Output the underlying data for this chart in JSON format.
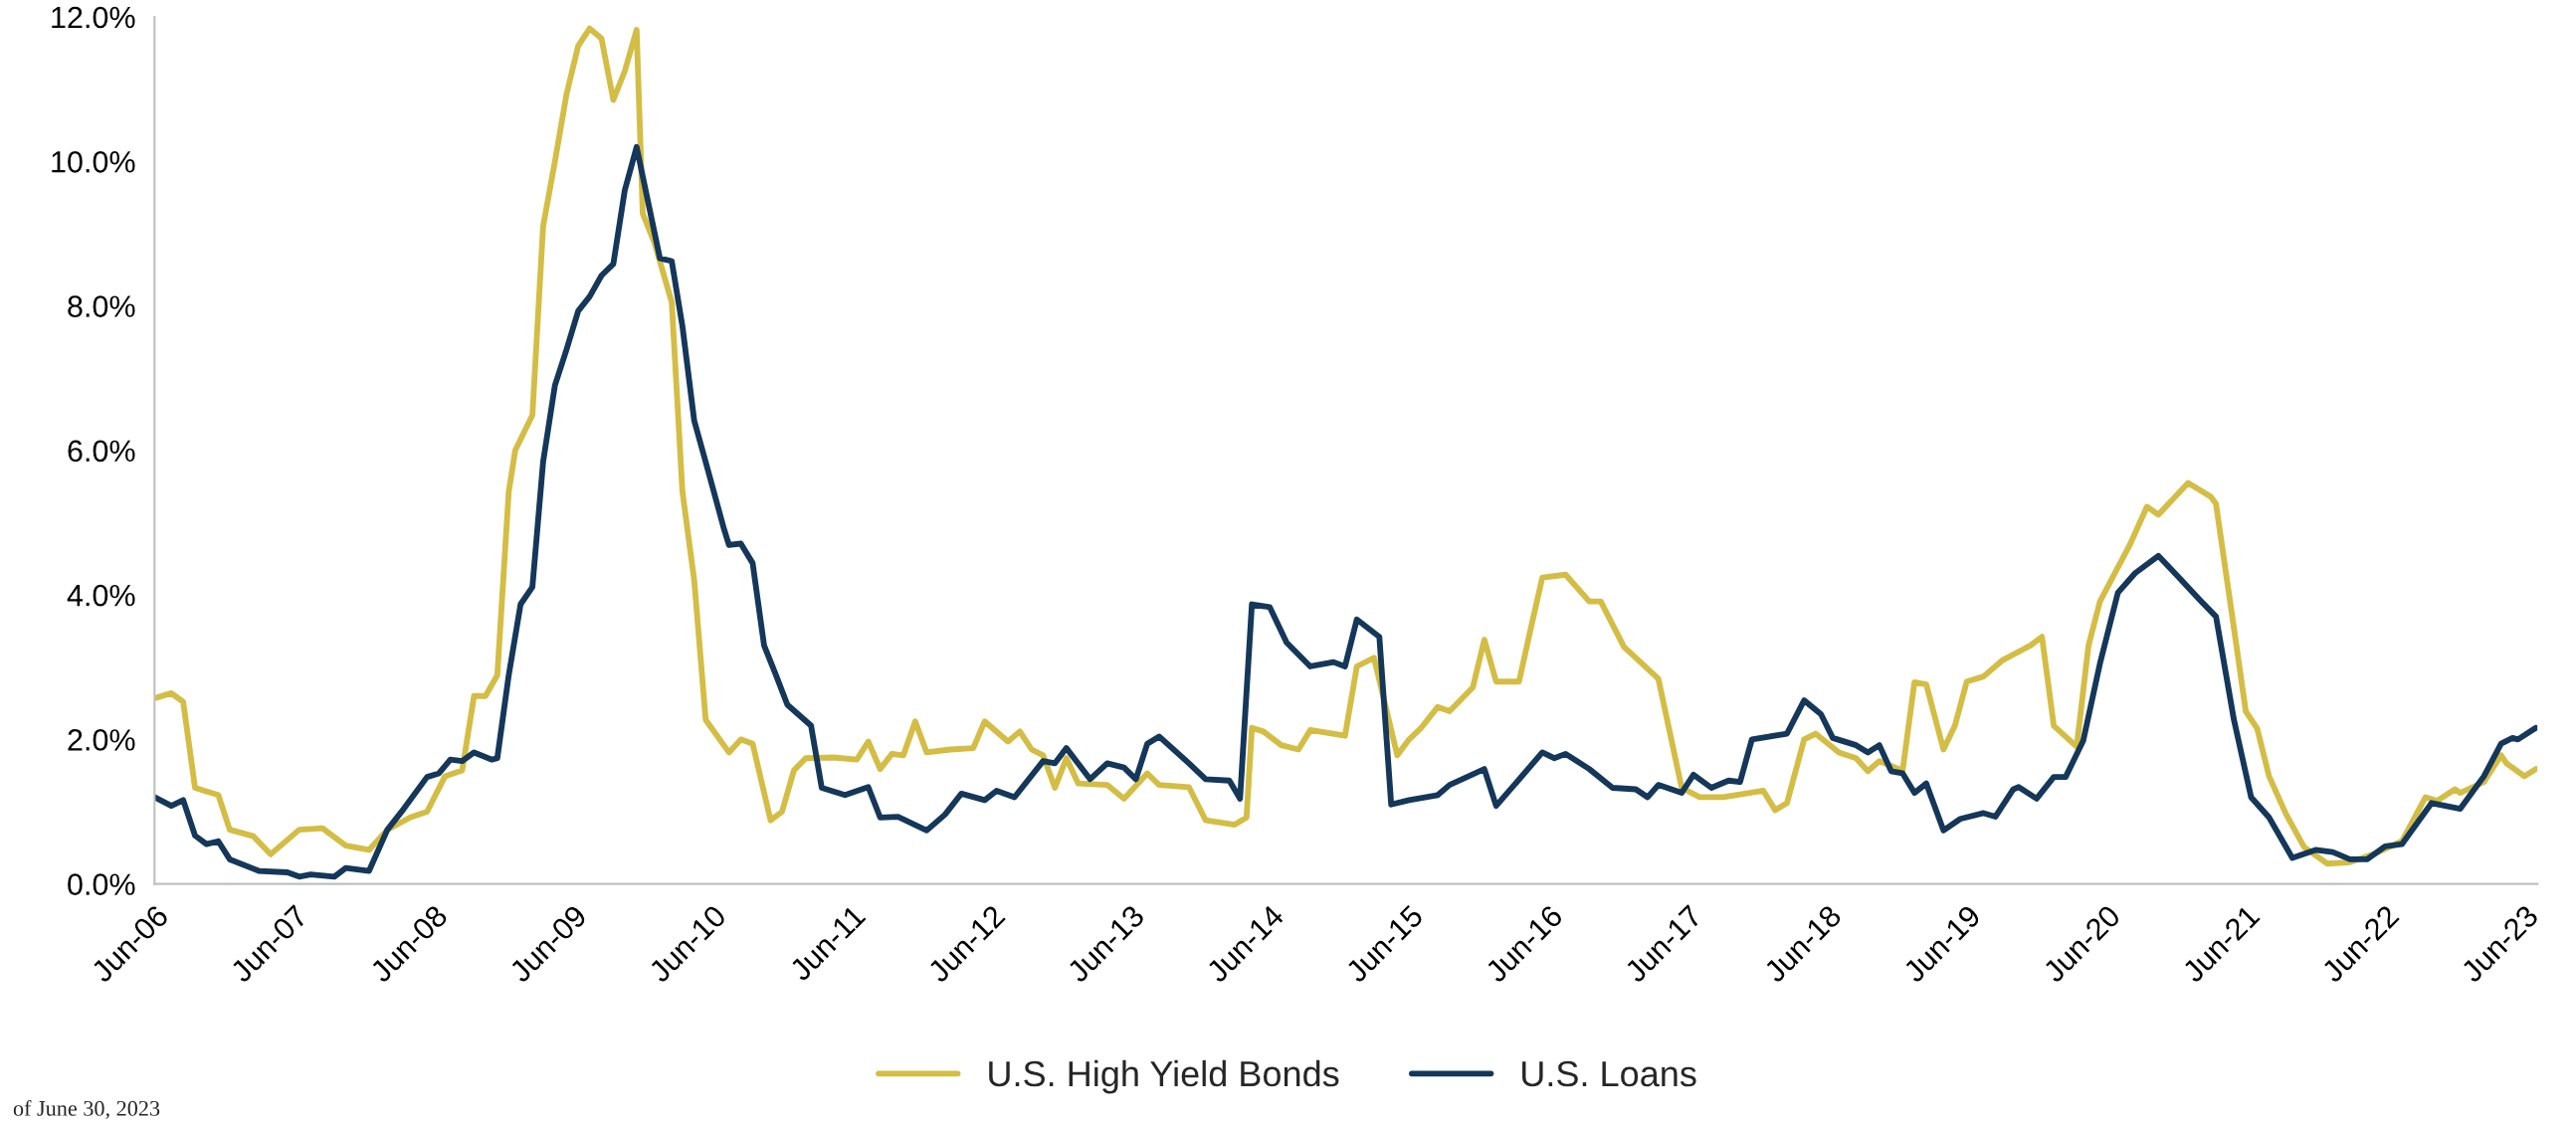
{
  "chart_data": {
    "type": "line",
    "xlim": [
      "2006-06-01",
      "2023-07-05"
    ],
    "ylim": [
      0,
      12
    ],
    "xticks": [
      {
        "value": "2006-06-01",
        "label": "Jun-06"
      },
      {
        "value": "2007-06-01",
        "label": "Jun-07"
      },
      {
        "value": "2008-06-01",
        "label": "Jun-08"
      },
      {
        "value": "2009-06-01",
        "label": "Jun-09"
      },
      {
        "value": "2010-06-01",
        "label": "Jun-10"
      },
      {
        "value": "2011-06-01",
        "label": "Jun-11"
      },
      {
        "value": "2012-06-01",
        "label": "Jun-12"
      },
      {
        "value": "2013-06-01",
        "label": "Jun-13"
      },
      {
        "value": "2014-06-01",
        "label": "Jun-14"
      },
      {
        "value": "2015-06-01",
        "label": "Jun-15"
      },
      {
        "value": "2016-06-01",
        "label": "Jun-16"
      },
      {
        "value": "2017-06-01",
        "label": "Jun-17"
      },
      {
        "value": "2018-06-01",
        "label": "Jun-18"
      },
      {
        "value": "2019-06-01",
        "label": "Jun-19"
      },
      {
        "value": "2020-06-01",
        "label": "Jun-20"
      },
      {
        "value": "2021-06-01",
        "label": "Jun-21"
      },
      {
        "value": "2022-06-01",
        "label": "Jun-22"
      },
      {
        "value": "2023-06-01",
        "label": "Jun-23"
      }
    ],
    "yticks": [
      {
        "value": 0,
        "label": "0.0%"
      },
      {
        "value": 2,
        "label": "2.0%"
      },
      {
        "value": 4,
        "label": "4.0%"
      },
      {
        "value": 6,
        "label": "6.0%"
      },
      {
        "value": 8,
        "label": "8.0%"
      },
      {
        "value": 10,
        "label": "10.0%"
      },
      {
        "value": 12,
        "label": "12.0%"
      }
    ],
    "grid": false,
    "legend": "bottom",
    "marker": "none",
    "line_style": "solid",
    "annotations": [
      "of June 30, 2023"
    ],
    "series": [
      {
        "name": "U.S. High Yield Bonds",
        "color": "#d4bd45",
        "x": [
          "2006-06-01",
          "2006-07-15",
          "2006-08-15",
          "2006-09-15",
          "2006-11-15",
          "2006-12-15",
          "2007-02-15",
          "2007-04-01",
          "2007-06-15",
          "2007-08-15",
          "2007-10-15",
          "2007-12-15",
          "2008-02-01",
          "2008-04-01",
          "2008-05-15",
          "2008-07-01",
          "2008-08-15",
          "2008-09-15",
          "2008-10-15",
          "2008-11-15",
          "2008-12-15",
          "2009-01-01",
          "2009-02-15",
          "2009-03-15",
          "2009-04-15",
          "2009-05-15",
          "2009-06-15",
          "2009-07-15",
          "2009-08-15",
          "2009-09-15",
          "2009-10-15",
          "2009-11-15",
          "2009-12-01",
          "2010-01-01",
          "2010-02-15",
          "2010-03-15",
          "2010-04-15",
          "2010-05-15",
          "2010-07-15",
          "2010-08-15",
          "2010-09-15",
          "2010-11-01",
          "2010-12-01",
          "2011-01-01",
          "2011-02-01",
          "2011-04-15",
          "2011-06-15",
          "2011-07-15",
          "2011-08-15",
          "2011-09-15",
          "2011-10-15",
          "2011-11-15",
          "2011-12-15",
          "2012-02-15",
          "2012-04-15",
          "2012-05-15",
          "2012-07-15",
          "2012-08-15",
          "2012-09-15",
          "2012-10-15",
          "2012-11-15",
          "2012-12-15",
          "2013-01-15",
          "2013-04-01",
          "2013-05-15",
          "2013-07-15",
          "2013-08-15",
          "2013-11-01",
          "2013-12-15",
          "2014-03-01",
          "2014-04-01",
          "2014-04-15",
          "2014-05-15",
          "2014-07-01",
          "2014-08-15",
          "2014-09-15",
          "2014-12-15",
          "2015-01-15",
          "2015-03-01",
          "2015-05-01",
          "2015-06-01",
          "2015-07-01",
          "2015-08-15",
          "2015-09-15",
          "2015-11-15",
          "2015-12-15",
          "2016-01-15",
          "2016-03-15",
          "2016-04-15",
          "2016-05-15",
          "2016-07-15",
          "2016-09-15",
          "2016-10-15",
          "2016-12-15",
          "2017-03-15",
          "2017-05-15",
          "2017-07-01",
          "2017-09-01",
          "2017-12-15",
          "2018-01-15",
          "2018-02-15",
          "2018-04-01",
          "2018-05-01",
          "2018-07-01",
          "2018-08-15",
          "2018-09-15",
          "2018-10-15",
          "2018-12-15",
          "2019-01-15",
          "2019-02-15",
          "2019-04-01",
          "2019-05-01",
          "2019-06-01",
          "2019-07-15",
          "2019-09-01",
          "2019-11-15",
          "2019-12-15",
          "2020-01-15",
          "2020-03-15",
          "2020-04-15",
          "2020-05-15",
          "2020-08-01",
          "2020-09-15",
          "2020-10-15",
          "2021-01-01",
          "2021-03-01",
          "2021-03-15",
          "2021-05-01",
          "2021-06-01",
          "2021-07-01",
          "2021-08-01",
          "2021-09-15",
          "2021-11-01",
          "2022-01-01",
          "2022-03-01",
          "2022-05-01",
          "2022-07-15",
          "2022-09-15",
          "2022-10-15",
          "2022-12-01",
          "2022-12-15",
          "2023-02-15",
          "2023-04-01",
          "2023-04-15",
          "2023-06-01",
          "2023-07-01"
        ],
        "values": [
          2.57,
          2.64,
          2.52,
          1.33,
          1.23,
          0.75,
          0.66,
          0.41,
          0.75,
          0.77,
          0.53,
          0.47,
          0.75,
          0.92,
          1.0,
          1.49,
          1.57,
          2.6,
          2.6,
          2.89,
          5.43,
          6.0,
          6.49,
          9.1,
          10.0,
          10.92,
          11.6,
          11.84,
          11.7,
          10.85,
          11.25,
          11.82,
          9.28,
          8.87,
          8.05,
          5.43,
          4.2,
          2.27,
          1.82,
          2.0,
          1.94,
          0.88,
          1.0,
          1.57,
          1.74,
          1.75,
          1.72,
          1.97,
          1.59,
          1.8,
          1.78,
          2.25,
          1.82,
          1.86,
          1.88,
          2.25,
          1.97,
          2.11,
          1.86,
          1.78,
          1.33,
          1.74,
          1.39,
          1.37,
          1.18,
          1.53,
          1.37,
          1.34,
          0.88,
          0.82,
          0.92,
          2.16,
          2.11,
          1.92,
          1.86,
          2.13,
          2.05,
          3.01,
          3.13,
          1.78,
          2.0,
          2.15,
          2.45,
          2.39,
          2.72,
          3.38,
          2.8,
          2.8,
          3.54,
          4.24,
          4.28,
          3.91,
          3.91,
          3.28,
          2.84,
          1.33,
          1.2,
          1.2,
          1.29,
          1.02,
          1.12,
          2.0,
          2.08,
          1.82,
          1.74,
          1.56,
          1.7,
          1.57,
          2.79,
          2.76,
          1.86,
          2.19,
          2.8,
          2.87,
          3.09,
          3.3,
          3.42,
          2.19,
          1.9,
          3.3,
          3.91,
          4.69,
          5.22,
          5.11,
          5.55,
          5.36,
          5.26,
          3.54,
          2.39,
          2.15,
          1.49,
          0.96,
          0.51,
          0.28,
          0.3,
          0.41,
          0.59,
          1.2,
          1.15,
          1.31,
          1.26,
          1.41,
          1.78,
          1.67,
          1.49,
          1.59
        ]
      },
      {
        "name": "U.S. Loans",
        "color": "#14375a",
        "x": [
          "2006-06-01",
          "2006-07-15",
          "2006-08-15",
          "2006-09-15",
          "2006-10-15",
          "2006-11-15",
          "2006-12-15",
          "2007-03-01",
          "2007-05-15",
          "2007-06-15",
          "2007-07-15",
          "2007-09-15",
          "2007-10-15",
          "2007-12-15",
          "2008-02-01",
          "2008-03-15",
          "2008-05-15",
          "2008-06-15",
          "2008-07-15",
          "2008-08-15",
          "2008-09-15",
          "2008-11-01",
          "2008-11-15",
          "2008-12-15",
          "2009-01-15",
          "2009-02-15",
          "2009-03-15",
          "2009-04-15",
          "2009-05-15",
          "2009-06-15",
          "2009-07-15",
          "2009-08-15",
          "2009-09-15",
          "2009-10-15",
          "2009-11-15",
          "2009-12-15",
          "2010-01-15",
          "2010-02-15",
          "2010-03-15",
          "2010-04-15",
          "2010-05-15",
          "2010-07-01",
          "2010-07-15",
          "2010-08-15",
          "2010-09-15",
          "2010-10-15",
          "2010-11-15",
          "2010-12-15",
          "2011-02-15",
          "2011-03-15",
          "2011-05-15",
          "2011-07-15",
          "2011-08-15",
          "2011-10-01",
          "2011-12-15",
          "2012-02-01",
          "2012-03-15",
          "2012-05-15",
          "2012-06-15",
          "2012-08-01",
          "2012-10-15",
          "2012-11-15",
          "2012-12-15",
          "2013-02-15",
          "2013-04-01",
          "2013-05-15",
          "2013-06-15",
          "2013-07-15",
          "2013-08-15",
          "2013-11-01",
          "2013-12-15",
          "2014-02-15",
          "2014-03-15",
          "2014-04-15",
          "2014-06-01",
          "2014-07-15",
          "2014-09-15",
          "2014-11-15",
          "2014-12-15",
          "2015-01-15",
          "2015-03-15",
          "2015-04-15",
          "2015-06-01",
          "2015-08-15",
          "2015-09-15",
          "2015-12-15",
          "2016-01-15",
          "2016-05-15",
          "2016-06-15",
          "2016-07-15",
          "2016-09-15",
          "2016-11-15",
          "2017-01-15",
          "2017-02-15",
          "2017-03-15",
          "2017-05-15",
          "2017-06-15",
          "2017-08-01",
          "2017-09-15",
          "2017-10-15",
          "2017-11-15",
          "2018-02-15",
          "2018-04-01",
          "2018-05-15",
          "2018-06-15",
          "2018-08-15",
          "2018-09-15",
          "2018-10-15",
          "2018-11-15",
          "2018-12-15",
          "2019-01-15",
          "2019-02-15",
          "2019-04-01",
          "2019-05-15",
          "2019-07-15",
          "2019-08-15",
          "2019-10-01",
          "2019-10-15",
          "2019-12-01",
          "2020-01-15",
          "2020-02-15",
          "2020-04-01",
          "2020-05-15",
          "2020-07-01",
          "2020-08-15",
          "2020-10-15",
          "2020-12-01",
          "2021-02-01",
          "2021-03-15",
          "2021-05-01",
          "2021-06-15",
          "2021-08-01",
          "2021-10-01",
          "2021-12-01",
          "2022-01-15",
          "2022-03-01",
          "2022-04-15",
          "2022-06-01",
          "2022-07-15",
          "2022-10-01",
          "2022-12-15",
          "2023-02-15",
          "2023-04-01",
          "2023-05-01",
          "2023-05-15",
          "2023-07-01"
        ],
        "values": [
          1.2,
          1.08,
          1.16,
          0.67,
          0.55,
          0.59,
          0.34,
          0.18,
          0.16,
          0.1,
          0.13,
          0.1,
          0.22,
          0.18,
          0.75,
          1.04,
          1.48,
          1.53,
          1.72,
          1.7,
          1.82,
          1.72,
          1.74,
          2.89,
          3.87,
          4.11,
          5.84,
          6.9,
          7.39,
          7.93,
          8.13,
          8.42,
          8.58,
          9.6,
          10.2,
          9.44,
          8.66,
          8.62,
          7.72,
          6.41,
          5.84,
          4.93,
          4.69,
          4.71,
          4.44,
          3.3,
          2.89,
          2.48,
          2.19,
          1.33,
          1.23,
          1.34,
          0.92,
          0.93,
          0.74,
          0.96,
          1.25,
          1.16,
          1.29,
          1.2,
          1.7,
          1.67,
          1.88,
          1.45,
          1.67,
          1.61,
          1.45,
          1.94,
          2.04,
          1.67,
          1.45,
          1.43,
          1.18,
          3.87,
          3.83,
          3.34,
          3.01,
          3.07,
          3.01,
          3.66,
          3.42,
          1.1,
          1.16,
          1.23,
          1.37,
          1.59,
          1.08,
          1.82,
          1.74,
          1.8,
          1.59,
          1.33,
          1.31,
          1.2,
          1.37,
          1.26,
          1.51,
          1.33,
          1.43,
          1.41,
          2.0,
          2.08,
          2.54,
          2.35,
          2.02,
          1.92,
          1.82,
          1.92,
          1.56,
          1.53,
          1.26,
          1.39,
          0.74,
          0.9,
          0.98,
          0.93,
          1.31,
          1.34,
          1.18,
          1.48,
          1.48,
          1.98,
          3.05,
          4.03,
          4.3,
          4.54,
          4.28,
          3.93,
          3.7,
          2.27,
          1.2,
          0.92,
          0.36,
          0.47,
          0.44,
          0.34,
          0.34,
          0.52,
          0.55,
          1.12,
          1.04,
          1.49,
          1.94,
          2.02,
          2.0,
          2.16
        ]
      }
    ]
  }
}
